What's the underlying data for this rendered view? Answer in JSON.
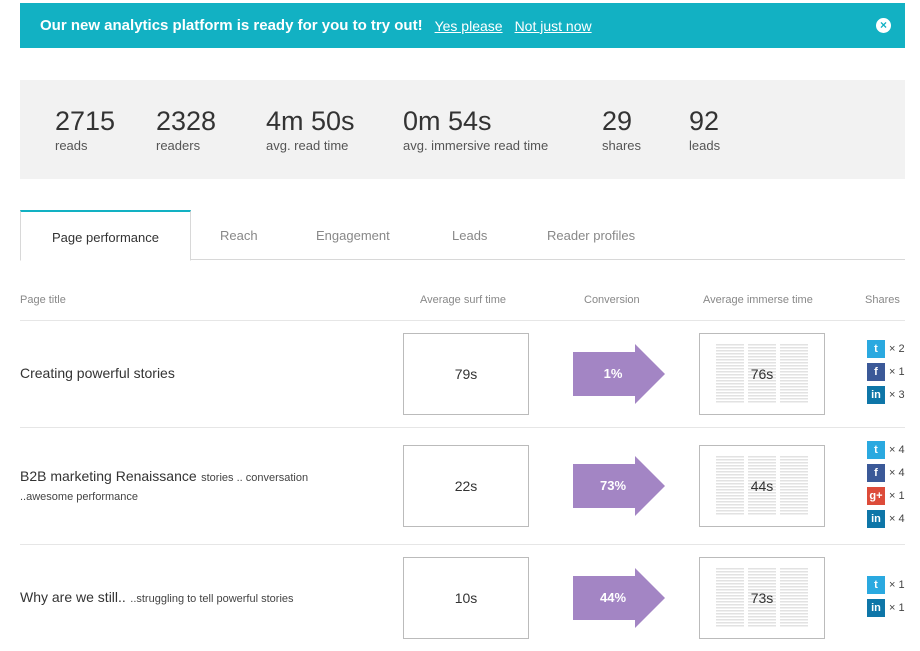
{
  "banner": {
    "message": "Our new analytics platform is ready for you to try out!",
    "yes_link": "Yes please",
    "no_link": "Not just now",
    "close_icon": "×"
  },
  "stats": [
    {
      "value": "2715",
      "label": "reads"
    },
    {
      "value": "2328",
      "label": "readers"
    },
    {
      "value": "4m 50s",
      "label": "avg. read time"
    },
    {
      "value": "0m 54s",
      "label": "avg. immersive read time"
    },
    {
      "value": "29",
      "label": "shares"
    },
    {
      "value": "92",
      "label": "leads"
    }
  ],
  "tabs": [
    "Page performance",
    "Reach",
    "Engagement",
    "Leads",
    "Reader profiles"
  ],
  "table": {
    "headers": {
      "title": "Page title",
      "surf": "Average surf time",
      "conversion": "Conversion",
      "immerse": "Average immerse time",
      "shares": "Shares"
    },
    "rows": [
      {
        "title": "Creating powerful stories",
        "sub": "",
        "sub2": "",
        "surf": "79s",
        "conversion": "1%",
        "immerse": "76s",
        "shares": [
          {
            "network": "twitter",
            "icon": "twitter-icon",
            "count": "× 2"
          },
          {
            "network": "facebook",
            "icon": "facebook-icon",
            "count": "× 1"
          },
          {
            "network": "linkedin",
            "icon": "linkedin-icon",
            "count": "× 3"
          }
        ]
      },
      {
        "title": "B2B marketing Renaissance",
        "sub": "stories .. conversation",
        "sub2": "..awesome performance",
        "surf": "22s",
        "conversion": "73%",
        "immerse": "44s",
        "shares": [
          {
            "network": "twitter",
            "icon": "twitter-icon",
            "count": "× 4"
          },
          {
            "network": "facebook",
            "icon": "facebook-icon",
            "count": "× 4"
          },
          {
            "network": "googleplus",
            "icon": "google-plus-icon",
            "count": "× 1"
          },
          {
            "network": "linkedin",
            "icon": "linkedin-icon",
            "count": "× 4"
          }
        ]
      },
      {
        "title": "Why are we still..",
        "sub": "..struggling to tell powerful stories",
        "sub2": "",
        "surf": "10s",
        "conversion": "44%",
        "immerse": "73s",
        "shares": [
          {
            "network": "twitter",
            "icon": "twitter-icon",
            "count": "× 1"
          },
          {
            "network": "linkedin",
            "icon": "linkedin-icon",
            "count": "× 1"
          }
        ]
      }
    ]
  },
  "colors": {
    "accent": "#12b1c3",
    "arrow": "#a385c4",
    "twitter": "#2aa9e0",
    "facebook": "#3b5998",
    "googleplus": "#dd4b39",
    "linkedin": "#0e76a8"
  },
  "icon_glyphs": {
    "twitter": "t",
    "facebook": "f",
    "googleplus": "g+",
    "linkedin": "in"
  }
}
